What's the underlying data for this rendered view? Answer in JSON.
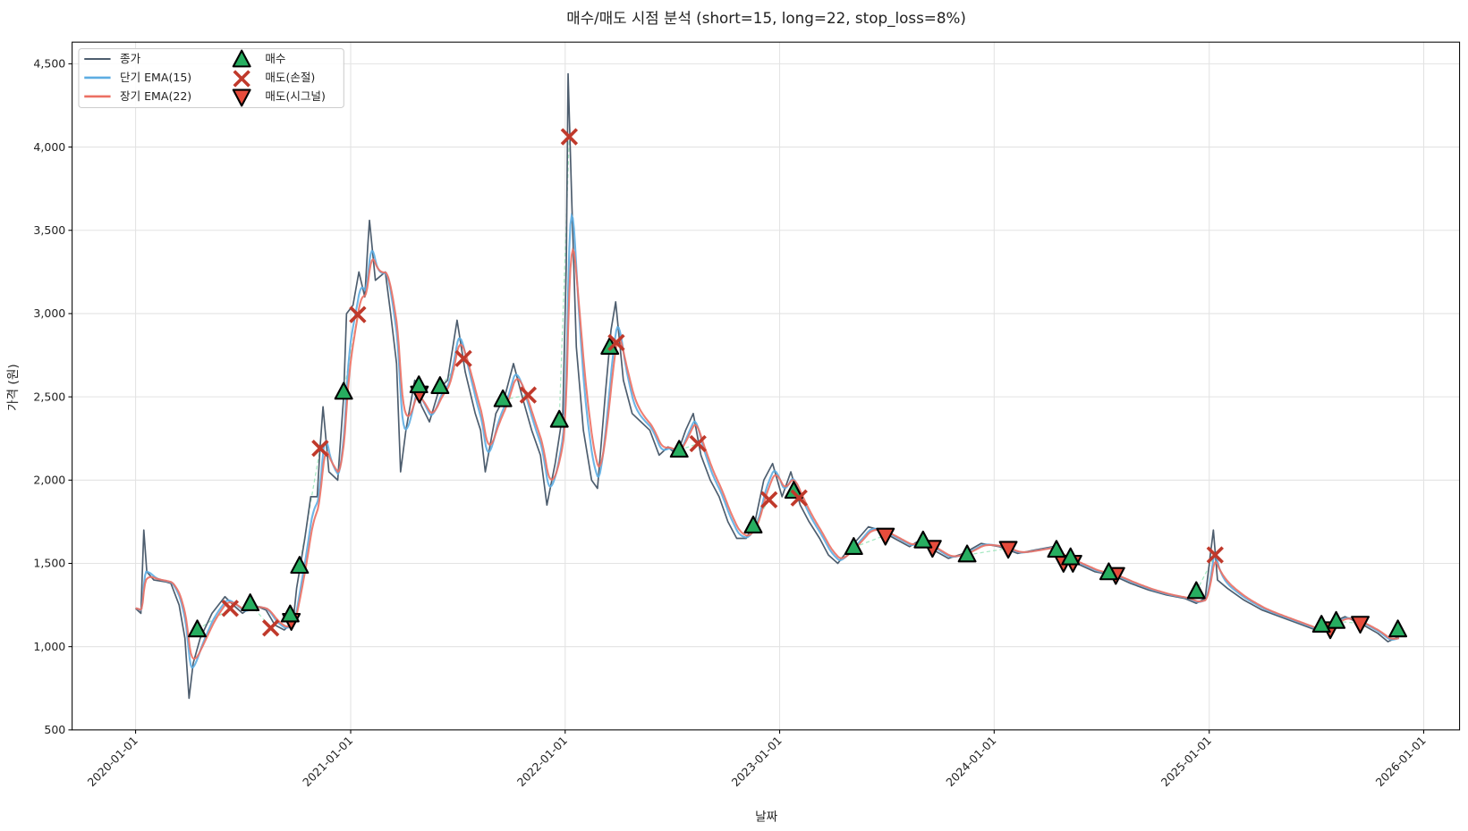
{
  "chart_data": {
    "type": "line",
    "title": "매수/매도 시점 분석 (short=15, long=22, stop_loss=8%)",
    "xlabel": "날짜",
    "ylabel": "가격 (원)",
    "xlim": [
      "2019-09-15",
      "2026-03-03"
    ],
    "ylim": [
      500,
      4630
    ],
    "grid": true,
    "legend_placement": "top-left",
    "x_ticks": [
      "2020-01-01",
      "2021-01-01",
      "2022-01-01",
      "2023-01-01",
      "2024-01-01",
      "2025-01-01",
      "2026-01-01"
    ],
    "y_ticks": [
      500,
      1000,
      1500,
      2000,
      2500,
      3000,
      3500,
      4000,
      4500
    ],
    "y_tick_labels": [
      "500",
      "1,000",
      "1,500",
      "2,000",
      "2,500",
      "3,000",
      "3,500",
      "4,000",
      "4,500"
    ],
    "colors": {
      "close": "#4d5d6e",
      "ema_short": "#5dade2",
      "ema_long": "#ec7063",
      "buy": "#27ae60",
      "stop_loss": "#c0392b",
      "signal_sell": "#e74c3c",
      "trade_link": "#82e0aa"
    },
    "series": [
      {
        "name": "종가",
        "key": "close",
        "data": [
          [
            "2020-01-01",
            1230
          ],
          [
            "2020-01-10",
            1200
          ],
          [
            "2020-01-15",
            1700
          ],
          [
            "2020-01-20",
            1450
          ],
          [
            "2020-02-01",
            1400
          ],
          [
            "2020-02-20",
            1390
          ],
          [
            "2020-03-01",
            1380
          ],
          [
            "2020-03-15",
            1250
          ],
          [
            "2020-03-25",
            1050
          ],
          [
            "2020-04-01",
            690
          ],
          [
            "2020-04-08",
            900
          ],
          [
            "2020-04-20",
            1050
          ],
          [
            "2020-05-10",
            1200
          ],
          [
            "2020-06-01",
            1300
          ],
          [
            "2020-06-15",
            1250
          ],
          [
            "2020-07-01",
            1200
          ],
          [
            "2020-07-20",
            1250
          ],
          [
            "2020-08-10",
            1220
          ],
          [
            "2020-08-25",
            1130
          ],
          [
            "2020-09-10",
            1100
          ],
          [
            "2020-09-25",
            1150
          ],
          [
            "2020-10-01",
            1350
          ],
          [
            "2020-10-15",
            1650
          ],
          [
            "2020-10-25",
            1900
          ],
          [
            "2020-11-05",
            1900
          ],
          [
            "2020-11-10",
            2200
          ],
          [
            "2020-11-15",
            2440
          ],
          [
            "2020-11-25",
            2050
          ],
          [
            "2020-12-10",
            2000
          ],
          [
            "2020-12-20",
            2500
          ],
          [
            "2020-12-25",
            3000
          ],
          [
            "2021-01-05",
            3050
          ],
          [
            "2021-01-15",
            3250
          ],
          [
            "2021-01-25",
            3100
          ],
          [
            "2021-01-30",
            3400
          ],
          [
            "2021-02-02",
            3560
          ],
          [
            "2021-02-12",
            3200
          ],
          [
            "2021-03-01",
            3250
          ],
          [
            "2021-03-10",
            3000
          ],
          [
            "2021-03-20",
            2700
          ],
          [
            "2021-03-27",
            2050
          ],
          [
            "2021-04-05",
            2300
          ],
          [
            "2021-04-20",
            2600
          ],
          [
            "2021-05-01",
            2450
          ],
          [
            "2021-05-15",
            2350
          ],
          [
            "2021-06-01",
            2550
          ],
          [
            "2021-06-15",
            2600
          ],
          [
            "2021-07-01",
            2960
          ],
          [
            "2021-07-15",
            2650
          ],
          [
            "2021-08-01",
            2400
          ],
          [
            "2021-08-10",
            2300
          ],
          [
            "2021-08-18",
            2050
          ],
          [
            "2021-09-05",
            2400
          ],
          [
            "2021-09-20",
            2500
          ],
          [
            "2021-10-05",
            2700
          ],
          [
            "2021-10-20",
            2500
          ],
          [
            "2021-11-05",
            2300
          ],
          [
            "2021-11-20",
            2150
          ],
          [
            "2021-12-01",
            1850
          ],
          [
            "2021-12-15",
            2100
          ],
          [
            "2021-12-28",
            2400
          ],
          [
            "2022-01-03",
            3300
          ],
          [
            "2022-01-06",
            4440
          ],
          [
            "2022-01-12",
            3700
          ],
          [
            "2022-01-20",
            2800
          ],
          [
            "2022-02-01",
            2300
          ],
          [
            "2022-02-15",
            2000
          ],
          [
            "2022-02-25",
            1950
          ],
          [
            "2022-03-10",
            2500
          ],
          [
            "2022-03-20",
            2900
          ],
          [
            "2022-03-28",
            3070
          ],
          [
            "2022-04-10",
            2600
          ],
          [
            "2022-04-25",
            2400
          ],
          [
            "2022-05-10",
            2350
          ],
          [
            "2022-05-25",
            2300
          ],
          [
            "2022-06-10",
            2150
          ],
          [
            "2022-06-25",
            2200
          ],
          [
            "2022-07-10",
            2150
          ],
          [
            "2022-07-25",
            2300
          ],
          [
            "2022-08-07",
            2400
          ],
          [
            "2022-08-20",
            2150
          ],
          [
            "2022-09-05",
            2000
          ],
          [
            "2022-09-20",
            1900
          ],
          [
            "2022-10-05",
            1750
          ],
          [
            "2022-10-20",
            1650
          ],
          [
            "2022-11-05",
            1650
          ],
          [
            "2022-11-20",
            1750
          ],
          [
            "2022-12-05",
            2000
          ],
          [
            "2022-12-20",
            2100
          ],
          [
            "2023-01-05",
            1900
          ],
          [
            "2023-01-20",
            2050
          ],
          [
            "2023-02-05",
            1850
          ],
          [
            "2023-02-20",
            1750
          ],
          [
            "2023-03-10",
            1650
          ],
          [
            "2023-03-25",
            1550
          ],
          [
            "2023-04-10",
            1500
          ],
          [
            "2023-04-25",
            1570
          ],
          [
            "2023-05-15",
            1650
          ],
          [
            "2023-06-01",
            1720
          ],
          [
            "2023-06-20",
            1700
          ],
          [
            "2023-07-15",
            1650
          ],
          [
            "2023-08-10",
            1600
          ],
          [
            "2023-09-01",
            1650
          ],
          [
            "2023-09-20",
            1580
          ],
          [
            "2023-10-15",
            1530
          ],
          [
            "2023-11-10",
            1560
          ],
          [
            "2023-12-10",
            1620
          ],
          [
            "2024-01-10",
            1600
          ],
          [
            "2024-02-10",
            1560
          ],
          [
            "2024-03-10",
            1580
          ],
          [
            "2024-04-10",
            1600
          ],
          [
            "2024-04-25",
            1530
          ],
          [
            "2024-05-20",
            1500
          ],
          [
            "2024-06-20",
            1450
          ],
          [
            "2024-07-20",
            1430
          ],
          [
            "2024-08-20",
            1380
          ],
          [
            "2024-09-20",
            1340
          ],
          [
            "2024-10-20",
            1310
          ],
          [
            "2024-11-20",
            1290
          ],
          [
            "2024-12-10",
            1260
          ],
          [
            "2024-12-25",
            1290
          ],
          [
            "2025-01-08",
            1700
          ],
          [
            "2025-01-15",
            1400
          ],
          [
            "2025-02-01",
            1350
          ],
          [
            "2025-03-01",
            1280
          ],
          [
            "2025-04-01",
            1220
          ],
          [
            "2025-05-01",
            1180
          ],
          [
            "2025-06-01",
            1140
          ],
          [
            "2025-07-01",
            1100
          ],
          [
            "2025-08-01",
            1150
          ],
          [
            "2025-08-20",
            1180
          ],
          [
            "2025-09-15",
            1140
          ],
          [
            "2025-10-15",
            1080
          ],
          [
            "2025-11-01",
            1030
          ],
          [
            "2025-11-20",
            1060
          ]
        ]
      },
      {
        "name": "단기 EMA(15)",
        "key": "ema_short",
        "span": 15
      },
      {
        "name": "장기 EMA(22)",
        "key": "ema_long",
        "span": 22
      }
    ],
    "markers": {
      "buy": {
        "name": "매수",
        "points": [
          [
            "2020-04-15",
            1101
          ],
          [
            "2020-07-14",
            1258
          ],
          [
            "2020-09-20",
            1191
          ],
          [
            "2020-10-06",
            1483
          ],
          [
            "2020-12-20",
            2528
          ],
          [
            "2021-04-27",
            2567
          ],
          [
            "2021-06-02",
            2562
          ],
          [
            "2021-09-17",
            2483
          ],
          [
            "2021-12-22",
            2360
          ],
          [
            "2022-03-18",
            2798
          ],
          [
            "2022-07-14",
            2180
          ],
          [
            "2022-11-17",
            1725
          ],
          [
            "2023-01-25",
            1933
          ],
          [
            "2023-05-07",
            1596
          ],
          [
            "2023-09-02",
            1635
          ],
          [
            "2023-11-16",
            1551
          ],
          [
            "2024-04-16",
            1579
          ],
          [
            "2024-05-10",
            1534
          ],
          [
            "2024-07-14",
            1444
          ],
          [
            "2024-12-10",
            1331
          ],
          [
            "2025-07-11",
            1129
          ],
          [
            "2025-08-05",
            1152
          ],
          [
            "2025-11-18",
            1101
          ]
        ]
      },
      "stop_loss": {
        "name": "매도(손절)",
        "points": [
          [
            "2020-06-10",
            1230
          ],
          [
            "2020-08-18",
            1112
          ],
          [
            "2020-11-10",
            2191
          ],
          [
            "2021-01-13",
            2994
          ],
          [
            "2021-07-12",
            2730
          ],
          [
            "2021-10-30",
            2511
          ],
          [
            "2022-01-08",
            4062
          ],
          [
            "2022-03-29",
            2826
          ],
          [
            "2022-08-15",
            2219
          ],
          [
            "2022-12-14",
            1882
          ],
          [
            "2023-02-03",
            1893
          ],
          [
            "2025-01-11",
            1551
          ]
        ]
      },
      "signal_sell": {
        "name": "매도(시그널)",
        "points": [
          [
            "2020-09-22",
            1157
          ],
          [
            "2021-04-28",
            2522
          ],
          [
            "2023-06-30",
            1669
          ],
          [
            "2023-09-18",
            1596
          ],
          [
            "2024-01-25",
            1590
          ],
          [
            "2024-04-28",
            1506
          ],
          [
            "2024-05-14",
            1506
          ],
          [
            "2024-07-26",
            1433
          ],
          [
            "2025-07-26",
            1107
          ],
          [
            "2025-09-15",
            1140
          ]
        ]
      }
    }
  }
}
